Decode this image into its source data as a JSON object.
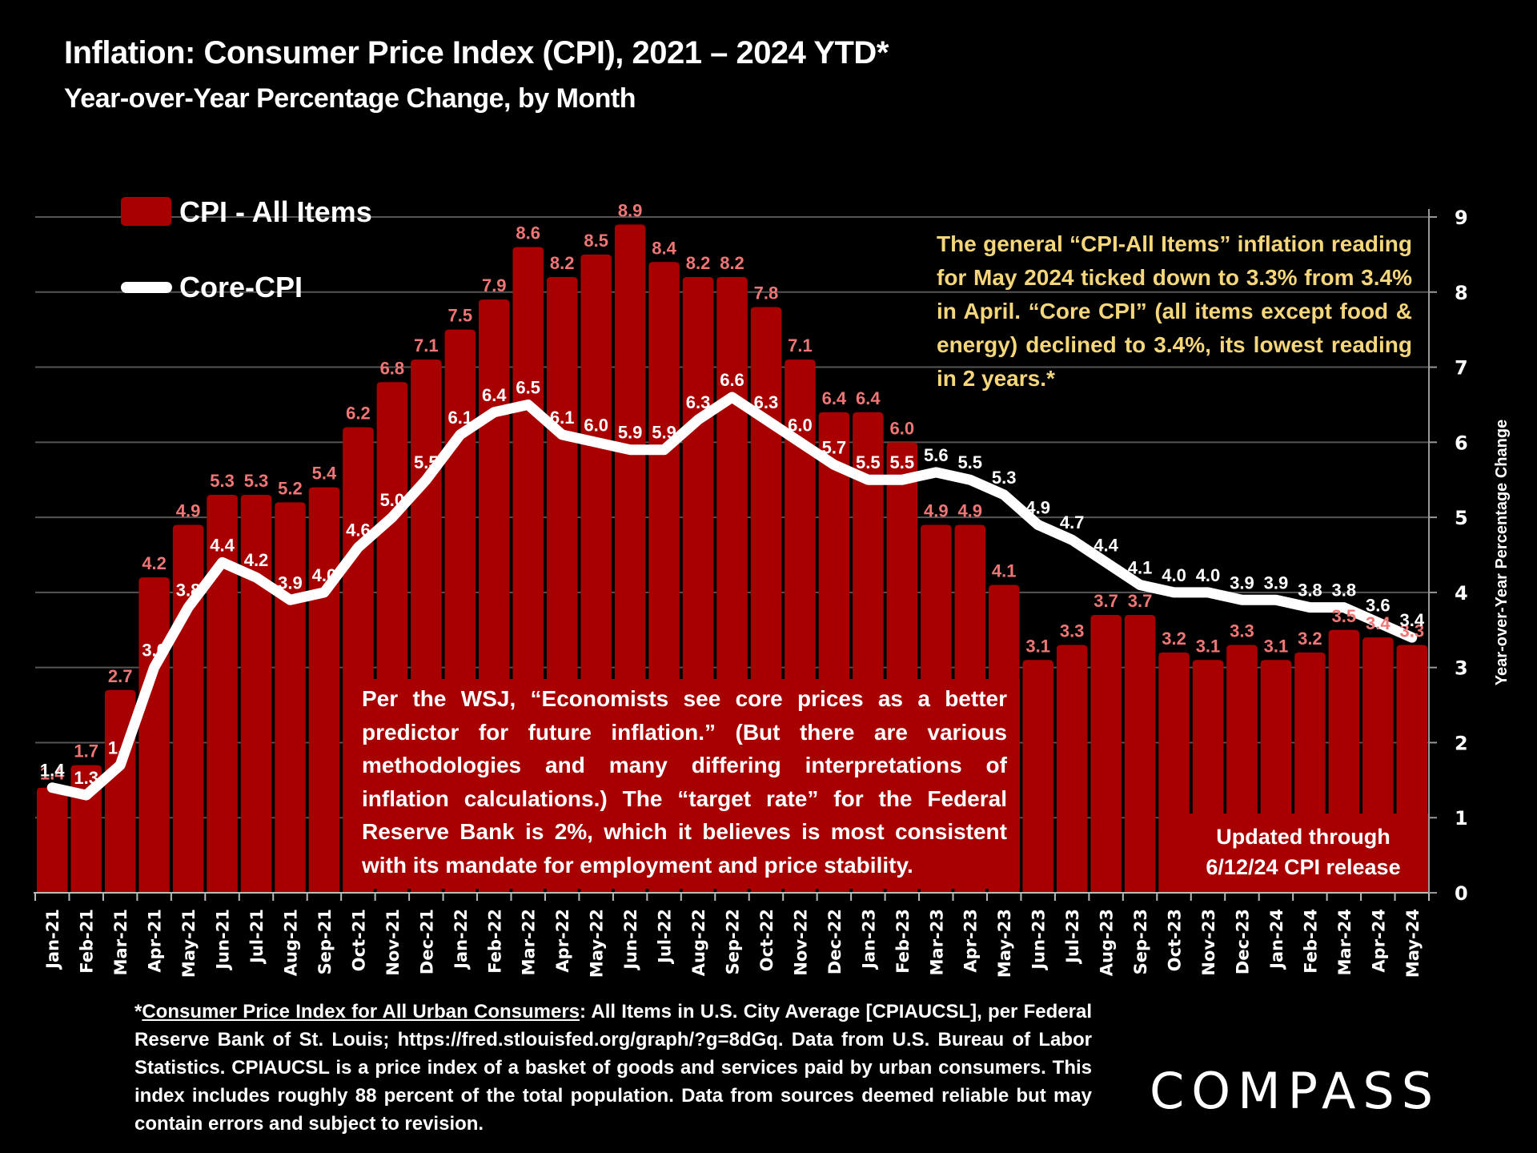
{
  "header": {
    "title": "Inflation: Consumer Price Index (CPI), 2021 – 2024 YTD*",
    "subtitle": "Year-over-Year Percentage Change, by Month"
  },
  "colors": {
    "background": "#000000",
    "bar": "#A80000",
    "bar_label": "#F07676",
    "core_line": "#FFFFFF",
    "annotation_gold": "#F5D67A",
    "gridline": "#555555"
  },
  "annotations": {
    "gold_note": "The general “CPI-All Items” inflation reading for May 2024 ticked down to 3.3% from 3.4% in April. “Core CPI” (all items except food & energy) declined to 3.4%, its lowest reading in 2 years.*",
    "wsj_note": "Per the WSJ, “Economists see core prices as a better predictor for future inflation.” (But there are various methodologies and many differing interpretations of inflation calculations.) The “target rate” for the Federal Reserve Bank is 2%, which it believes is most consistent with its mandate for employment and price stability.",
    "updated_line1": "Updated through",
    "updated_line2": "6/12/24 CPI release"
  },
  "footnote": {
    "lead": "*",
    "underlined": "Consumer Price Index for All Urban Consumers",
    "rest": ": All Items in U.S. City Average [CPIAUCSL], per Federal Reserve Bank of St. Louis; https://fred.stlouisfed.org/graph/?g=8dGq. Data from U.S. Bureau of Labor Statistics. CPIAUCSL is a price index of a basket of goods and services paid by urban consumers. This index includes roughly 88 percent of the total population. Data from sources deemed reliable but may contain errors and subject to revision."
  },
  "logo": {
    "text": "COMPASS"
  },
  "chart_data": {
    "type": "bar",
    "title": "Inflation: Consumer Price Index (CPI), 2021 – 2024 YTD*",
    "subtitle": "Year-over-Year Percentage Change, by Month",
    "xlabel": "",
    "ylabel": "Year-over-Year Percentage Change",
    "ylim": [
      0,
      9
    ],
    "yticks": [
      "0",
      "1",
      "2",
      "3",
      "4",
      "5",
      "6",
      "7",
      "8",
      "9"
    ],
    "y_axis_side": "right",
    "grid": true,
    "legend_position": "top-left",
    "categories": [
      "Jan-21",
      "Feb-21",
      "Mar-21",
      "Apr-21",
      "May-21",
      "Jun-21",
      "Jul-21",
      "Aug-21",
      "Sep-21",
      "Oct-21",
      "Nov-21",
      "Dec-21",
      "Jan-22",
      "Feb-22",
      "Mar-22",
      "Apr-22",
      "May-22",
      "Jun-22",
      "Jul-22",
      "Aug-22",
      "Sep-22",
      "Oct-22",
      "Nov-22",
      "Dec-22",
      "Jan-23",
      "Feb-23",
      "Mar-23",
      "Apr-23",
      "May-23",
      "Jun-23",
      "Jul-23",
      "Aug-23",
      "Sep-23",
      "Oct-23",
      "Nov-23",
      "Dec-23",
      "Jan-24",
      "Feb-24",
      "Mar-24",
      "Apr-24",
      "May-24"
    ],
    "series": [
      {
        "name": "CPI - All Items",
        "type": "bar",
        "values": [
          1.4,
          1.7,
          2.7,
          4.2,
          4.9,
          5.3,
          5.3,
          5.2,
          5.4,
          6.2,
          6.8,
          7.1,
          7.5,
          7.9,
          8.6,
          8.2,
          8.5,
          8.9,
          8.4,
          8.2,
          8.2,
          7.8,
          7.1,
          6.4,
          6.4,
          6.0,
          4.9,
          4.9,
          4.1,
          3.1,
          3.3,
          3.7,
          3.7,
          3.2,
          3.1,
          3.3,
          3.1,
          3.2,
          3.5,
          3.4,
          3.3
        ]
      },
      {
        "name": "Core-CPI",
        "type": "line",
        "values": [
          1.4,
          1.3,
          1.7,
          3.0,
          3.8,
          4.4,
          4.2,
          3.9,
          4.0,
          4.6,
          5.0,
          5.5,
          6.1,
          6.4,
          6.5,
          6.1,
          6.0,
          5.9,
          5.9,
          6.3,
          6.6,
          6.3,
          6.0,
          5.7,
          5.5,
          5.5,
          5.6,
          5.5,
          5.3,
          4.9,
          4.7,
          4.4,
          4.1,
          4.0,
          4.0,
          3.9,
          3.9,
          3.8,
          3.8,
          3.6,
          3.4
        ]
      }
    ]
  }
}
